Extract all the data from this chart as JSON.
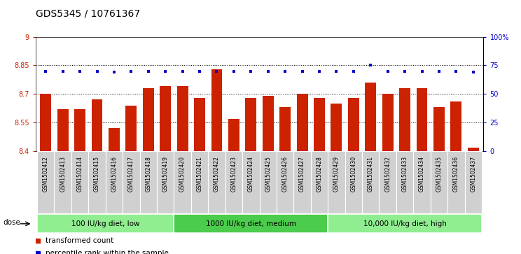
{
  "title": "GDS5345 / 10761367",
  "samples": [
    "GSM1502412",
    "GSM1502413",
    "GSM1502414",
    "GSM1502415",
    "GSM1502416",
    "GSM1502417",
    "GSM1502418",
    "GSM1502419",
    "GSM1502420",
    "GSM1502421",
    "GSM1502422",
    "GSM1502423",
    "GSM1502424",
    "GSM1502425",
    "GSM1502426",
    "GSM1502427",
    "GSM1502428",
    "GSM1502429",
    "GSM1502430",
    "GSM1502431",
    "GSM1502432",
    "GSM1502433",
    "GSM1502434",
    "GSM1502435",
    "GSM1502436",
    "GSM1502437"
  ],
  "bar_values": [
    8.7,
    8.62,
    8.62,
    8.67,
    8.52,
    8.64,
    8.73,
    8.74,
    8.74,
    8.68,
    8.83,
    8.57,
    8.68,
    8.69,
    8.63,
    8.7,
    8.68,
    8.65,
    8.68,
    8.76,
    8.7,
    8.73,
    8.73,
    8.63,
    8.66,
    8.42
  ],
  "percentile_values": [
    70,
    70,
    70,
    70,
    69,
    70,
    70,
    70,
    70,
    70,
    70,
    70,
    70,
    70,
    70,
    70,
    70,
    70,
    70,
    75,
    70,
    70,
    70,
    70,
    70,
    69
  ],
  "bar_color": "#cc2200",
  "dot_color": "#0000cc",
  "ylim_left": [
    8.4,
    9.0
  ],
  "ylim_right": [
    0,
    100
  ],
  "yticks_left": [
    8.4,
    8.55,
    8.7,
    8.85,
    9.0
  ],
  "ytick_labels_left": [
    "8.4",
    "8.55",
    "8.7",
    "8.85",
    "9"
  ],
  "yticks_right": [
    0,
    25,
    50,
    75,
    100
  ],
  "ytick_labels_right": [
    "0",
    "25",
    "50",
    "75",
    "100%"
  ],
  "hlines": [
    8.55,
    8.7,
    8.85
  ],
  "groups": [
    {
      "label": "100 IU/kg diet, low",
      "start": 0,
      "end": 8,
      "color": "#90ee90"
    },
    {
      "label": "1000 IU/kg diet, medium",
      "start": 8,
      "end": 17,
      "color": "#4ccc4c"
    },
    {
      "label": "10,000 IU/kg diet, high",
      "start": 17,
      "end": 26,
      "color": "#90ee90"
    }
  ],
  "legend_items": [
    {
      "label": "transformed count",
      "color": "#cc2200"
    },
    {
      "label": "percentile rank within the sample",
      "color": "#0000cc"
    }
  ],
  "dose_label": "dose",
  "bg_plot": "#ffffff",
  "grid_color": "#000000",
  "title_fontsize": 10,
  "tick_fontsize": 7,
  "bar_width": 0.65
}
